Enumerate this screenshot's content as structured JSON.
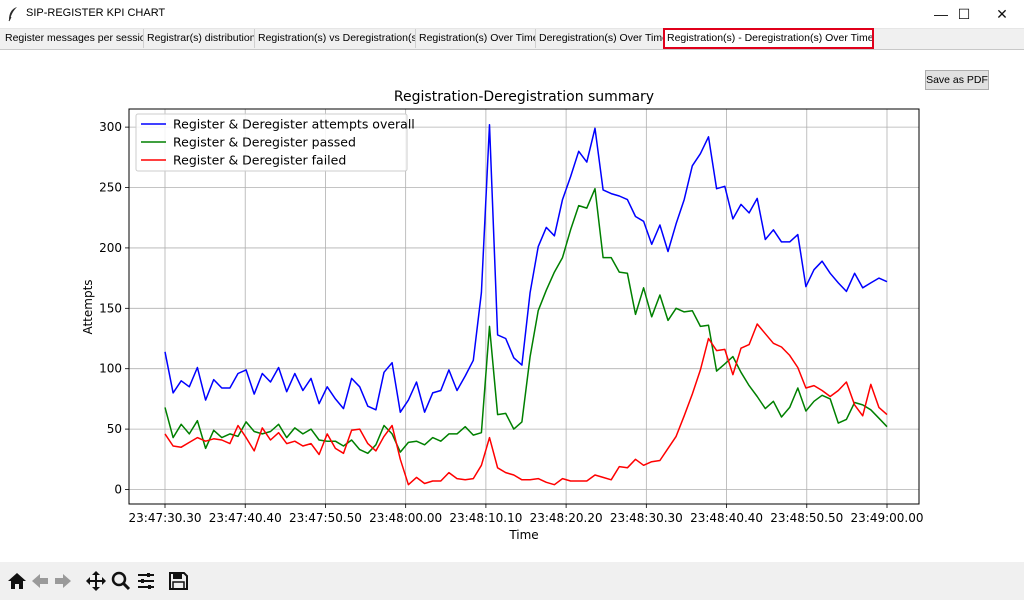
{
  "window": {
    "title": "SIP-REGISTER KPI CHART",
    "minimize_glyph": "—",
    "maximize_glyph": "☐",
    "close_glyph": "✕"
  },
  "tabs": [
    {
      "label": "Register messages per session"
    },
    {
      "label": "Registrar(s) distribution"
    },
    {
      "label": "Registration(s) vs Deregistration(s)"
    },
    {
      "label": "Registration(s) Over Time"
    },
    {
      "label": "Deregistration(s) Over Time"
    },
    {
      "label": "Registration(s) - Deregistration(s) Over Time",
      "active": true
    }
  ],
  "save_button": {
    "label": "Save as PDF"
  },
  "toolbar": {
    "icons": [
      "home-icon",
      "back-arrow-icon",
      "forward-arrow-icon",
      "pan-icon",
      "zoom-icon",
      "configure-subplots-icon",
      "save-icon"
    ]
  },
  "chart_data": {
    "type": "line",
    "title": "Registration-Deregistration summary",
    "xlabel": "Time",
    "ylabel": "Attempts",
    "ylim": [
      -12,
      315
    ],
    "yticks": [
      0,
      50,
      100,
      150,
      200,
      250,
      300
    ],
    "xticks": [
      "23:47:30.30",
      "23:47:40.40",
      "23:47:50.50",
      "23:48:00.00",
      "23:48:10.10",
      "23:48:20.20",
      "23:48:30.30",
      "23:48:40.40",
      "23:48:50.50",
      "23:49:00.00"
    ],
    "grid": true,
    "legend_position": "top-left",
    "series": [
      {
        "name": "Register & Deregister attempts overall",
        "color": "#0000ff",
        "values": [
          114,
          80,
          90,
          85,
          101,
          74,
          91,
          84,
          84,
          96,
          99,
          79,
          96,
          89,
          101,
          81,
          96,
          82,
          92,
          71,
          85,
          75,
          67,
          92,
          85,
          69,
          66,
          97,
          105,
          64,
          74,
          89,
          64,
          80,
          82,
          99,
          82,
          94,
          107,
          163,
          302,
          128,
          125,
          109,
          103,
          163,
          201,
          217,
          210,
          240,
          259,
          280,
          271,
          299,
          248,
          245,
          243,
          240,
          226,
          222,
          203,
          219,
          197,
          220,
          240,
          268,
          278,
          292,
          249,
          251,
          224,
          236,
          229,
          241,
          207,
          215,
          205,
          205,
          211,
          168,
          182,
          189,
          179,
          171,
          164,
          179,
          167,
          171,
          175,
          172
        ]
      },
      {
        "name": "Register & Deregister passed",
        "color": "#008000",
        "values": [
          68,
          43,
          54,
          46,
          57,
          34,
          49,
          43,
          46,
          44,
          56,
          48,
          46,
          48,
          54,
          43,
          51,
          46,
          50,
          41,
          40,
          40,
          36,
          41,
          33,
          30,
          37,
          53,
          46,
          31,
          39,
          40,
          37,
          43,
          40,
          46,
          46,
          52,
          45,
          47,
          135,
          62,
          63,
          50,
          56,
          110,
          148,
          165,
          180,
          192,
          215,
          235,
          233,
          249,
          192,
          192,
          180,
          179,
          145,
          167,
          143,
          161,
          140,
          150,
          147,
          148,
          135,
          136,
          98,
          104,
          110,
          97,
          86,
          77,
          67,
          73,
          60,
          68,
          84,
          65,
          73,
          78,
          75,
          55,
          58,
          72,
          70,
          66,
          59,
          52
        ]
      },
      {
        "name": "Register & Deregister failed",
        "color": "#ff0000",
        "values": [
          46,
          36,
          35,
          39,
          43,
          40,
          42,
          41,
          38,
          53,
          43,
          32,
          51,
          41,
          47,
          38,
          40,
          36,
          38,
          29,
          46,
          34,
          30,
          49,
          50,
          38,
          32,
          44,
          53,
          25,
          4,
          10,
          5,
          7,
          7,
          14,
          9,
          8,
          9,
          20,
          43,
          18,
          14,
          12,
          8,
          8,
          9,
          6,
          4,
          9,
          7,
          7,
          7,
          12,
          10,
          8,
          19,
          18,
          25,
          20,
          23,
          24,
          34,
          44,
          61,
          79,
          99,
          125,
          115,
          116,
          95,
          117,
          120,
          137,
          129,
          121,
          118,
          111,
          101,
          84,
          86,
          82,
          77,
          82,
          89,
          70,
          61,
          87,
          68,
          62
        ]
      }
    ]
  }
}
